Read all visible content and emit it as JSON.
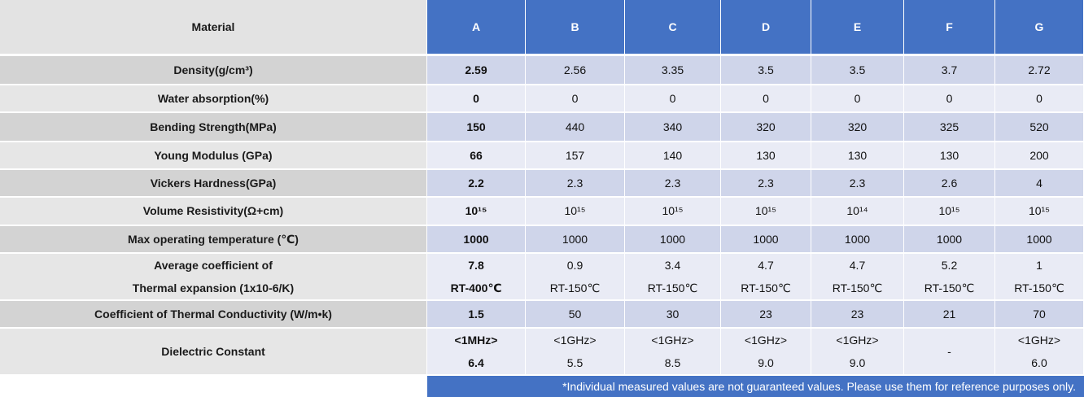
{
  "header": {
    "label": "Material",
    "columns": [
      "A",
      "B",
      "C",
      "D",
      "E",
      "F",
      "G"
    ]
  },
  "rows": [
    {
      "label": "Density(g/cm³)",
      "values": [
        "2.59",
        "2.56",
        "3.35",
        "3.5",
        "3.5",
        "3.7",
        "2.72"
      ]
    },
    {
      "label": "Water absorption(%)",
      "values": [
        "0",
        "0",
        "0",
        "0",
        "0",
        "0",
        "0"
      ]
    },
    {
      "label": "Bending Strength(MPa)",
      "values": [
        "150",
        "440",
        "340",
        "320",
        "320",
        "325",
        "520"
      ]
    },
    {
      "label": "Young Modulus (GPa)",
      "values": [
        "66",
        "157",
        "140",
        "130",
        "130",
        "130",
        "200"
      ]
    },
    {
      "label": "Vickers Hardness(GPa)",
      "values": [
        "2.2",
        "2.3",
        "2.3",
        "2.3",
        "2.3",
        "2.6",
        "4"
      ]
    },
    {
      "label": "Volume Resistivity(Ω+cm)",
      "values": [
        "10¹⁵",
        "10¹⁵",
        "10¹⁵",
        "10¹⁵",
        "10¹⁴",
        "10¹⁵",
        "10¹⁵"
      ]
    },
    {
      "label": "Max operating temperature (℃)",
      "values": [
        "1000",
        "1000",
        "1000",
        "1000",
        "1000",
        "1000",
        "1000"
      ]
    },
    {
      "label": "Average coefficient of",
      "label2": "Thermal expansion (1x10-6/K)",
      "values": [
        "7.8",
        "0.9",
        "3.4",
        "4.7",
        "4.7",
        "5.2",
        "1"
      ],
      "values2": [
        "RT-400℃",
        "RT-150℃",
        "RT-150℃",
        "RT-150℃",
        "RT-150℃",
        "RT-150℃",
        "RT-150℃"
      ]
    },
    {
      "label": "Coefficient of Thermal Conductivity (W/m•k)",
      "values": [
        "1.5",
        "50",
        "30",
        "23",
        "23",
        "21",
        "70"
      ]
    },
    {
      "label": "Dielectric Constant",
      "values": [
        "<1MHz>",
        "<1GHz>",
        "<1GHz>",
        "<1GHz>",
        "<1GHz>",
        "-",
        "<1GHz>"
      ],
      "values2": [
        "6.4",
        "5.5",
        "8.5",
        "9.0",
        "9.0",
        "",
        "6.0"
      ]
    }
  ],
  "footnote": "*Individual measured values are not guaranteed values. Please use them for reference purposes only.",
  "colors": {
    "header_blue": "#4472c4",
    "row_dark": "#cfd5ea",
    "row_light": "#e9ebf5"
  }
}
